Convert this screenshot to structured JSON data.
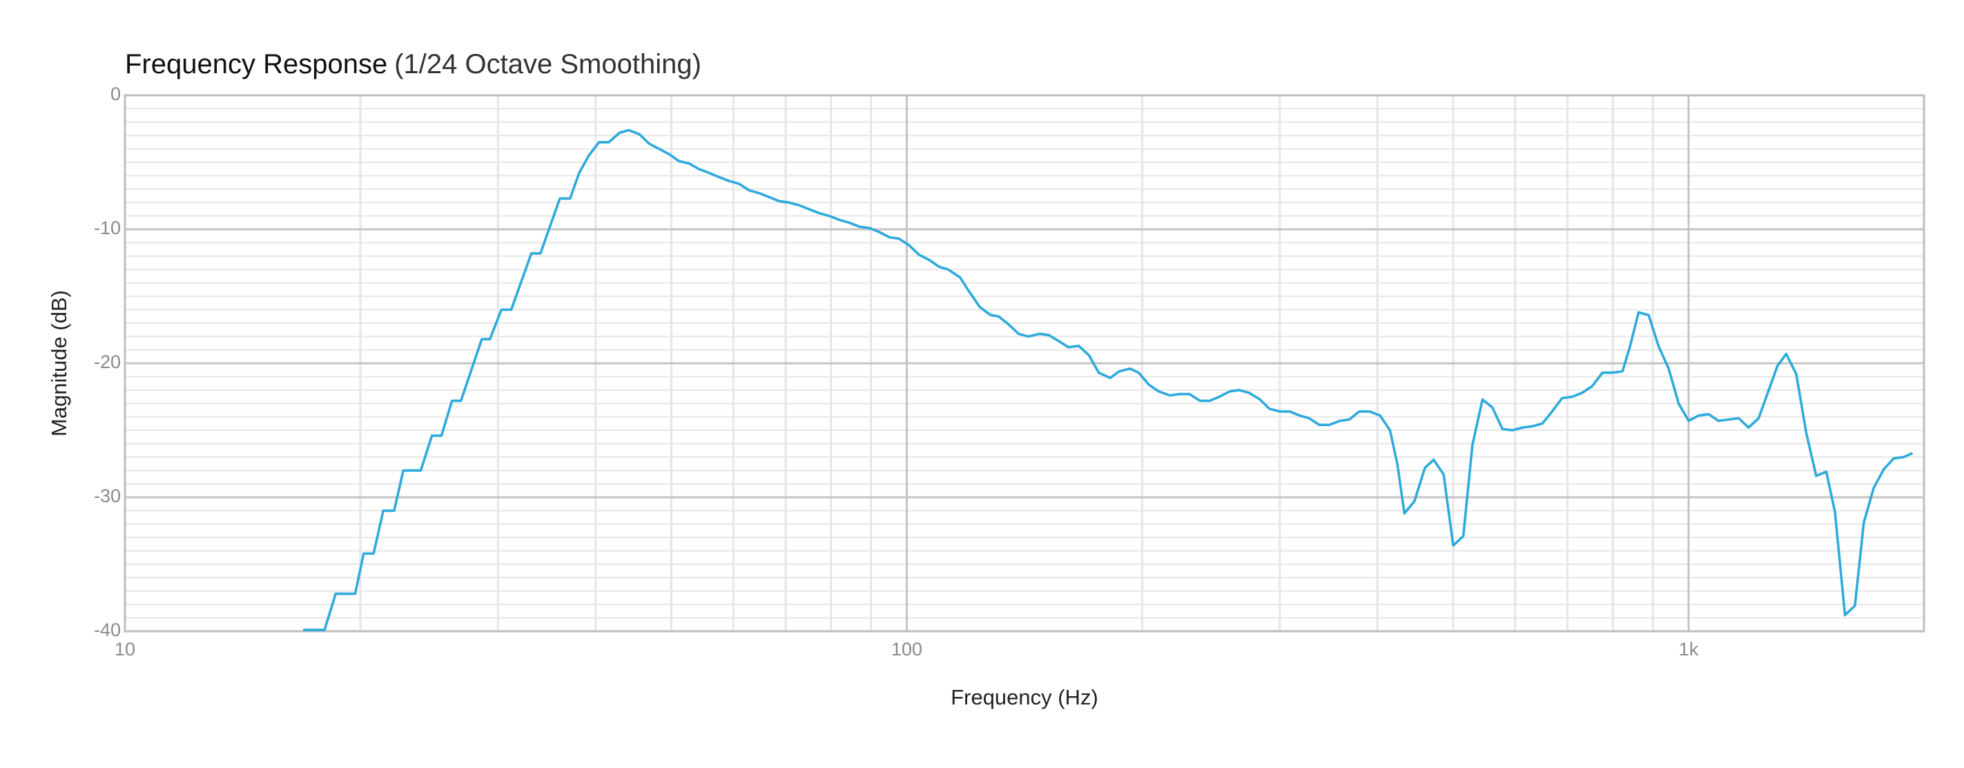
{
  "chart_data": {
    "type": "line",
    "title": "Frequency Response",
    "subtitle": "(1/24 Octave Smoothing)",
    "x_label": "Frequency (Hz)",
    "y_label": "Magnitude (dB)",
    "xscale": "log",
    "grid": true,
    "minor_grid": true,
    "xlim": [
      10,
      2000
    ],
    "xticks": [
      10,
      100,
      {
        "value": 1000,
        "label": "1k"
      }
    ],
    "ylim": [
      -40,
      0
    ],
    "yticks": [
      0,
      -10,
      -20,
      -30,
      -40
    ],
    "series": [
      {
        "name": "Magnitude",
        "color": "#2eaadc",
        "x": [
          16.9,
          18.0,
          18.6,
          19.7,
          20.2,
          20.8,
          21.4,
          22.1,
          22.7,
          23.9,
          24.7,
          25.4,
          26.2,
          26.9,
          28.6,
          29.3,
          30.3,
          31.2,
          33.1,
          34.0,
          36.0,
          37.1,
          38.1,
          39.2,
          40.4,
          41.6,
          42.9,
          44.1,
          45.5,
          46.8,
          48.2,
          49.7,
          51.1,
          52.7,
          54.2,
          55.9,
          57.5,
          59.3,
          61.0,
          62.9,
          64.7,
          66.7,
          68.7,
          70.7,
          72.8,
          75.0,
          77.3,
          79.6,
          82.0,
          84.4,
          86.9,
          89.5,
          92.2,
          95.0,
          97.8,
          100.7,
          103.7,
          106.9,
          110,
          113,
          117,
          120,
          124,
          128,
          131,
          135,
          139,
          143,
          148,
          152,
          157,
          161,
          166,
          171,
          176,
          182,
          187,
          193,
          198,
          204,
          210,
          217,
          223,
          230,
          237,
          244,
          251,
          259,
          266,
          274,
          283,
          291,
          300,
          309,
          318,
          327,
          337,
          347,
          358,
          368,
          379,
          391,
          403,
          415,
          424,
          433,
          446,
          460,
          472,
          486,
          500,
          515,
          529,
          545,
          561,
          578,
          595,
          613,
          631,
          650,
          669,
          689,
          710,
          731,
          753,
          776,
          799,
          823,
          841,
          863,
          889,
          915,
          943,
          971,
          1000,
          1030,
          1061,
          1092,
          1125,
          1159,
          1193,
          1229,
          1261,
          1299,
          1333,
          1373,
          1414,
          1456,
          1500,
          1539,
          1585,
          1632,
          1675,
          1725,
          1777,
          1830,
          1885,
          1934
        ],
        "values": [
          -39.9,
          -39.9,
          -37.2,
          -37.2,
          -34.2,
          -34.2,
          -31.0,
          -31.0,
          -28.0,
          -28.0,
          -25.4,
          -25.4,
          -22.8,
          -22.8,
          -18.2,
          -18.2,
          -16.0,
          -16.0,
          -11.8,
          -11.8,
          -7.7,
          -7.7,
          -5.8,
          -4.5,
          -3.5,
          -3.5,
          -2.8,
          -2.6,
          -2.9,
          -3.6,
          -4.0,
          -4.4,
          -4.9,
          -5.1,
          -5.5,
          -5.8,
          -6.1,
          -6.4,
          -6.6,
          -7.1,
          -7.3,
          -7.6,
          -7.9,
          -8.0,
          -8.2,
          -8.5,
          -8.8,
          -9.0,
          -9.3,
          -9.5,
          -9.8,
          -9.9,
          -10.2,
          -10.6,
          -10.7,
          -11.2,
          -11.9,
          -12.3,
          -12.8,
          -13.0,
          -13.6,
          -14.6,
          -15.8,
          -16.4,
          -16.5,
          -17.1,
          -17.8,
          -18.0,
          -17.8,
          -17.9,
          -18.4,
          -18.8,
          -18.7,
          -19.4,
          -20.7,
          -21.1,
          -20.6,
          -20.4,
          -20.7,
          -21.6,
          -22.1,
          -22.4,
          -22.3,
          -22.3,
          -22.8,
          -22.8,
          -22.5,
          -22.1,
          -22.0,
          -22.2,
          -22.7,
          -23.4,
          -23.6,
          -23.6,
          -23.9,
          -24.1,
          -24.6,
          -24.6,
          -24.3,
          -24.2,
          -23.6,
          -23.6,
          -23.9,
          -25.0,
          -27.5,
          -31.2,
          -30.3,
          -27.8,
          -27.2,
          -28.3,
          -33.6,
          -32.9,
          -26.1,
          -22.7,
          -23.3,
          -24.9,
          -25.0,
          -24.8,
          -24.7,
          -24.5,
          -23.6,
          -22.6,
          -22.5,
          -22.2,
          -21.7,
          -20.7,
          -20.7,
          -20.6,
          -18.8,
          -16.2,
          -16.4,
          -18.7,
          -20.4,
          -23.0,
          -24.3,
          -23.9,
          -23.8,
          -24.3,
          -24.2,
          -24.1,
          -24.8,
          -24.1,
          -22.3,
          -20.2,
          -19.3,
          -20.8,
          -25.2,
          -28.4,
          -28.1,
          -31.1,
          -38.8,
          -38.1,
          -31.9,
          -29.3,
          -27.9,
          -27.1,
          -27.0,
          -26.7
        ]
      }
    ]
  }
}
